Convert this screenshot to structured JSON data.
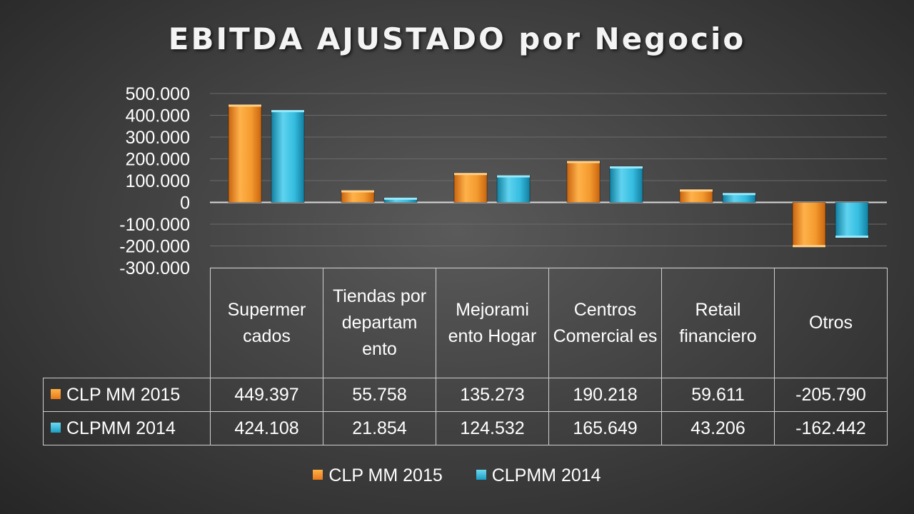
{
  "chart_data": {
    "type": "bar",
    "title": "EBITDA AJUSTADO por Negocio",
    "categories": [
      "Supermer cados",
      "Tiendas por departam ento",
      "Mejorami ento Hogar",
      "Centros Comercial es",
      "Retail financiero",
      "Otros"
    ],
    "series": [
      {
        "name": "CLP MM  2015",
        "color": "#f39a2e",
        "values": [
          449397,
          55758,
          135273,
          190218,
          59611,
          -205790
        ],
        "labels": [
          "449.397",
          "55.758",
          "135.273",
          "190.218",
          "59.611",
          "-205.790"
        ]
      },
      {
        "name": "CLPMM 2014",
        "color": "#35bde0",
        "values": [
          424108,
          21854,
          124532,
          165649,
          43206,
          -162442
        ],
        "labels": [
          "424.108",
          "21.854",
          "124.532",
          "165.649",
          "43.206",
          "-162.442"
        ]
      }
    ],
    "ylim": [
      -300000,
      500000
    ],
    "yticks": [
      500000,
      400000,
      300000,
      200000,
      100000,
      0,
      -100000,
      -200000,
      -300000
    ],
    "ytick_labels": [
      "500.000",
      "400.000",
      "300.000",
      "200.000",
      "100.000",
      "0",
      "-100.000",
      "-200.000",
      "-300.000"
    ],
    "grid": true,
    "legend_position": "bottom",
    "data_table": true
  }
}
